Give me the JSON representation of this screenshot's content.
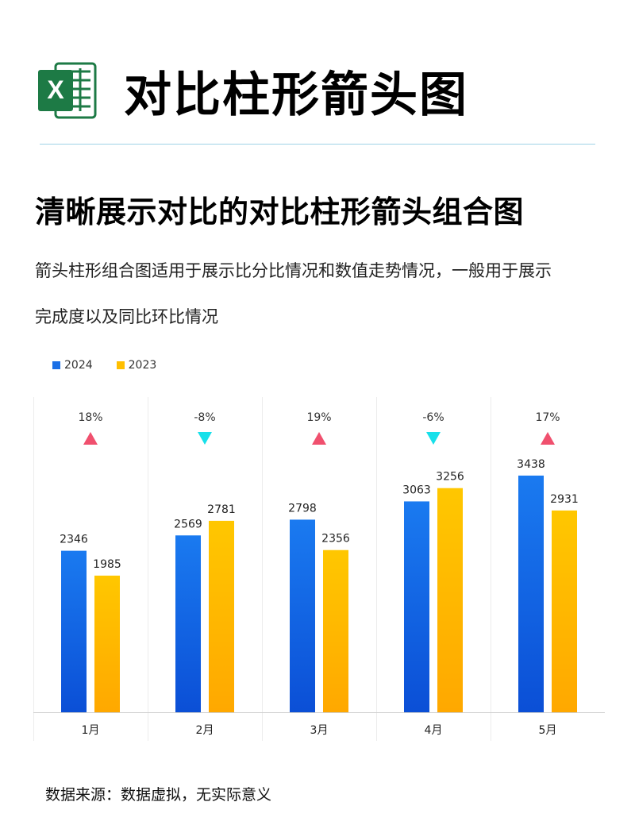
{
  "header": {
    "title": "对比柱形箭头图",
    "logo_icon": "excel-icon",
    "logo_letter": "X",
    "logo_color": "#1d7a45"
  },
  "subtitle": "清晰展示对比的对比柱形箭头组合图",
  "description": {
    "line1": "箭头柱形组合图适用于展示比分比情况和数值走势情况，一般用于展示",
    "line2": "完成度以及同比环比情况"
  },
  "source_note": "数据来源：数据虚拟，无实际意义",
  "chart_data": {
    "type": "bar",
    "categories": [
      "1月",
      "2月",
      "3月",
      "4月",
      "5月"
    ],
    "series": [
      {
        "name": "2024",
        "values": [
          2346,
          2569,
          2798,
          3063,
          3438
        ],
        "color": "#1a6fe6"
      },
      {
        "name": "2023",
        "values": [
          1985,
          2781,
          2356,
          3256,
          2931
        ],
        "color": "#ffbf00"
      }
    ],
    "change_labels": [
      "18%",
      "-8%",
      "19%",
      "-6%",
      "17%"
    ],
    "change_direction": [
      "up",
      "down",
      "up",
      "down",
      "up"
    ],
    "up_color": "#f0506e",
    "down_color": "#17e0ea",
    "legend_position": "top-left",
    "ylim": [
      0,
      4000
    ],
    "grid": false
  }
}
